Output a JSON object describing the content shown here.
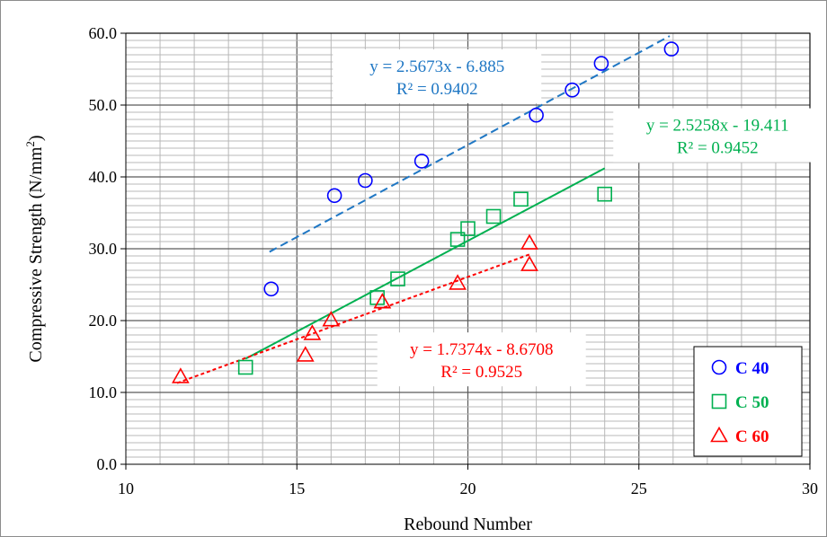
{
  "chart_data": {
    "type": "scatter",
    "xlabel": "Rebound Number",
    "ylabel": "Compressive Strength (N/mm",
    "ylabel_sup": "2",
    "ylabel_end": ")",
    "xlim": [
      10,
      30
    ],
    "ylim": [
      0,
      60
    ],
    "x_ticks": [
      "10",
      "15",
      "20",
      "25",
      "30"
    ],
    "y_ticks": [
      "0.0",
      "10.0",
      "20.0",
      "30.0",
      "40.0",
      "50.0",
      "60.0"
    ],
    "grid": true,
    "legend_position": "bottom-right",
    "series": [
      {
        "name": "C 40",
        "marker": "circle",
        "color": "#0000ff",
        "points": [
          [
            14.25,
            24.4
          ],
          [
            16.1,
            37.4
          ],
          [
            17.0,
            39.5
          ],
          [
            18.65,
            42.2
          ],
          [
            22.0,
            48.6
          ],
          [
            23.05,
            52.1
          ],
          [
            23.9,
            55.8
          ],
          [
            25.95,
            57.8
          ]
        ],
        "trendline": {
          "equation": "y = 2.5673x - 6.885",
          "r2": "R² = 0.9402",
          "slope": 2.5673,
          "intercept": -6.885,
          "x_range": [
            14.2,
            25.9
          ],
          "style": "dashed",
          "color": "#1f77c4",
          "label_color": "#1f77c4"
        }
      },
      {
        "name": "C 50",
        "marker": "square",
        "color": "#00b050",
        "points": [
          [
            13.5,
            13.5
          ],
          [
            17.35,
            23.2
          ],
          [
            17.95,
            25.8
          ],
          [
            19.7,
            31.3
          ],
          [
            20.0,
            32.8
          ],
          [
            20.75,
            34.5
          ],
          [
            21.55,
            36.9
          ],
          [
            24.0,
            37.6
          ]
        ],
        "trendline": {
          "equation": "y = 2.5258x - 19.411",
          "r2": "R² = 0.9452",
          "slope": 2.5258,
          "intercept": -19.411,
          "x_range": [
            13.5,
            24.0
          ],
          "style": "solid",
          "color": "#00b050",
          "label_color": "#00b050"
        }
      },
      {
        "name": "C 60",
        "marker": "triangle",
        "color": "#ff0000",
        "points": [
          [
            11.6,
            12.2
          ],
          [
            15.25,
            15.2
          ],
          [
            15.45,
            18.2
          ],
          [
            16.0,
            20.1
          ],
          [
            17.5,
            22.6
          ],
          [
            19.7,
            25.2
          ],
          [
            21.8,
            27.8
          ],
          [
            21.8,
            30.8
          ]
        ],
        "trendline": {
          "equation": "y = 1.7374x - 8.6708",
          "r2": "R² = 0.9525",
          "slope": 1.7374,
          "intercept": -8.6708,
          "x_range": [
            11.5,
            21.8
          ],
          "style": "dotted",
          "color": "#ff0000",
          "label_color": "#ff0000"
        }
      }
    ]
  }
}
